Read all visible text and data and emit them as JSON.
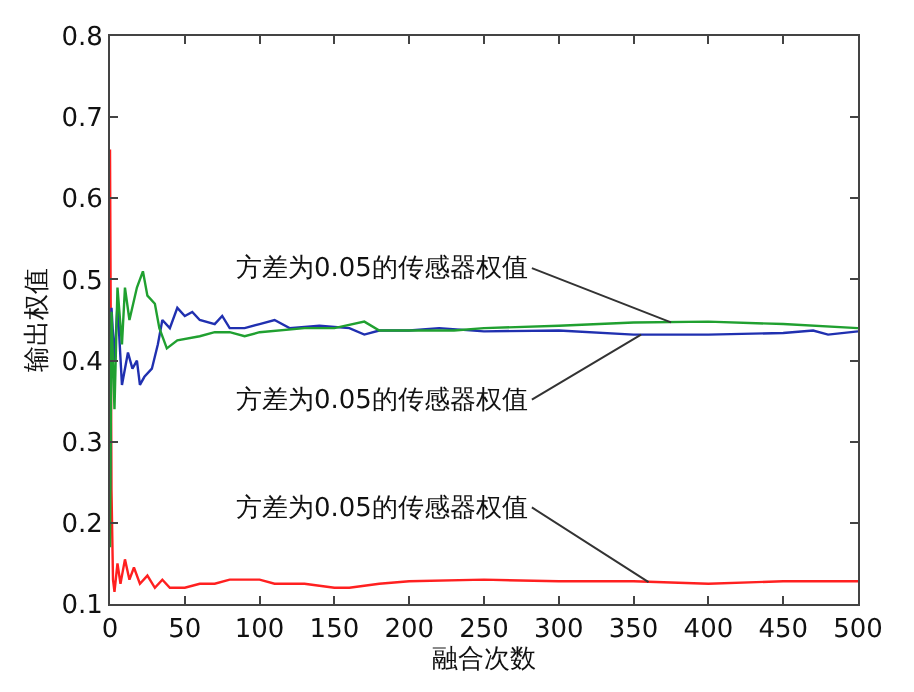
{
  "chart_data": {
    "type": "line",
    "xlabel": "融合次数",
    "ylabel": "输出权值",
    "xlim": [
      0,
      500
    ],
    "xticks": [
      0,
      50,
      100,
      150,
      200,
      250,
      300,
      350,
      400,
      450,
      500
    ],
    "ylim": [
      0.1,
      0.8
    ],
    "yticks": [
      0.1,
      0.2,
      0.3,
      0.4,
      0.5,
      0.6,
      0.7,
      0.8
    ],
    "marker": "none",
    "line_style": "solid",
    "series": [
      {
        "color": "#ff2020",
        "x": [
          0,
          1,
          2,
          3,
          5,
          7,
          10,
          13,
          16,
          20,
          25,
          30,
          35,
          40,
          50,
          60,
          70,
          80,
          100,
          110,
          130,
          150,
          160,
          180,
          200,
          250,
          300,
          350,
          400,
          450,
          500
        ],
        "values": [
          0.66,
          0.24,
          0.13,
          0.115,
          0.15,
          0.125,
          0.155,
          0.13,
          0.145,
          0.125,
          0.135,
          0.12,
          0.13,
          0.12,
          0.12,
          0.125,
          0.125,
          0.13,
          0.13,
          0.125,
          0.125,
          0.12,
          0.12,
          0.125,
          0.128,
          0.13,
          0.128,
          0.128,
          0.125,
          0.128,
          0.128
        ]
      },
      {
        "color": "#2030b0",
        "x": [
          0,
          1,
          3,
          5,
          8,
          12,
          15,
          18,
          20,
          23,
          28,
          32,
          35,
          40,
          45,
          50,
          55,
          60,
          70,
          75,
          80,
          90,
          100,
          110,
          120,
          140,
          160,
          170,
          180,
          200,
          220,
          250,
          300,
          350,
          400,
          450,
          470,
          480,
          500
        ],
        "values": [
          0.24,
          0.465,
          0.4,
          0.47,
          0.37,
          0.41,
          0.39,
          0.4,
          0.37,
          0.38,
          0.39,
          0.42,
          0.45,
          0.44,
          0.465,
          0.455,
          0.46,
          0.45,
          0.445,
          0.455,
          0.44,
          0.44,
          0.445,
          0.45,
          0.44,
          0.443,
          0.44,
          0.432,
          0.437,
          0.437,
          0.44,
          0.436,
          0.437,
          0.432,
          0.432,
          0.434,
          0.437,
          0.432,
          0.436
        ]
      },
      {
        "color": "#20a030",
        "x": [
          0,
          1,
          3,
          5,
          8,
          10,
          13,
          18,
          22,
          25,
          30,
          33,
          38,
          45,
          60,
          70,
          80,
          90,
          100,
          130,
          150,
          170,
          180,
          200,
          230,
          250,
          300,
          350,
          400,
          450,
          500
        ],
        "values": [
          0.17,
          0.46,
          0.34,
          0.49,
          0.42,
          0.49,
          0.45,
          0.49,
          0.51,
          0.48,
          0.47,
          0.44,
          0.415,
          0.425,
          0.43,
          0.435,
          0.435,
          0.43,
          0.435,
          0.44,
          0.44,
          0.448,
          0.437,
          0.437,
          0.437,
          0.44,
          0.443,
          0.447,
          0.448,
          0.445,
          0.44
        ]
      }
    ],
    "annotations": [
      {
        "text": "方差为0.05的传感器权值",
        "x": 375,
        "y": 0.447
      },
      {
        "text": "方差为0.05的传感器权值",
        "x": 355,
        "y": 0.432
      },
      {
        "text": "方差为0.05的传感器权值",
        "x": 360,
        "y": 0.127
      }
    ]
  }
}
